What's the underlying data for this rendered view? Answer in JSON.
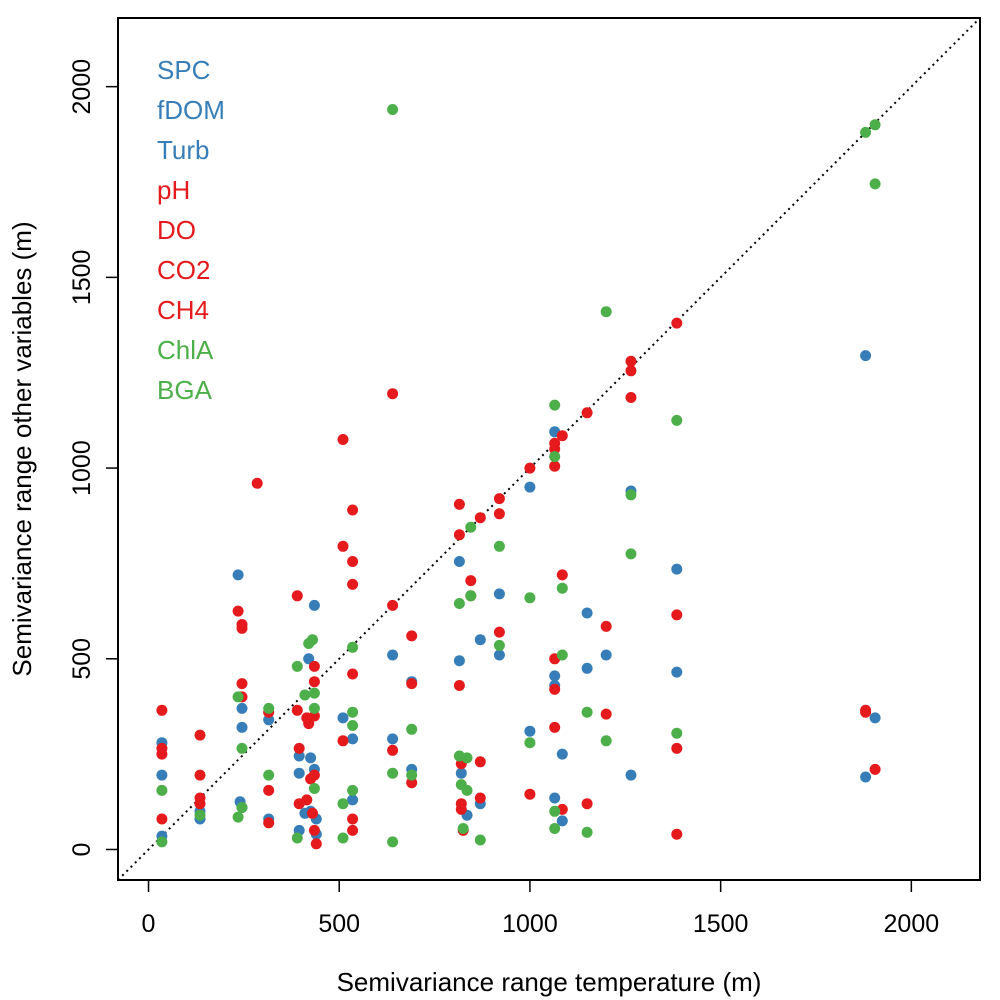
{
  "chart_data": {
    "type": "scatter",
    "xlabel": "Semivariance range temperature (m)",
    "ylabel": "Semivariance range other variables (m)",
    "xlim": [
      -80,
      2180
    ],
    "ylim": [
      -80,
      2180
    ],
    "xticks": [
      0,
      500,
      1000,
      1500,
      2000
    ],
    "yticks": [
      0,
      500,
      1000,
      1500,
      2000
    ],
    "xtick_labels": [
      "0",
      "500",
      "1000",
      "1500",
      "2000"
    ],
    "ytick_labels": [
      "0",
      "500",
      "1000",
      "1500",
      "2000"
    ],
    "reference_line": "y = x (dotted)",
    "grid": false,
    "legend_position": "top-left",
    "groups": [
      {
        "label": "SPC",
        "color": "#377EB8"
      },
      {
        "label": "fDOM",
        "color": "#377EB8"
      },
      {
        "label": "Turb",
        "color": "#377EB8"
      },
      {
        "label": "pH",
        "color": "#E41A1C"
      },
      {
        "label": "DO",
        "color": "#E41A1C"
      },
      {
        "label": "CO2",
        "color": "#E41A1C"
      },
      {
        "label": "CH4",
        "color": "#E41A1C"
      },
      {
        "label": "ChlA",
        "color": "#4DAF4A"
      },
      {
        "label": "BGA",
        "color": "#4DAF4A"
      }
    ],
    "series": [
      {
        "color": "#377EB8",
        "points": [
          [
            35,
            280
          ],
          [
            35,
            195
          ],
          [
            35,
            35
          ],
          [
            135,
            80
          ],
          [
            135,
            100
          ],
          [
            235,
            720
          ],
          [
            240,
            125
          ],
          [
            245,
            370
          ],
          [
            245,
            320
          ],
          [
            245,
            110
          ],
          [
            315,
            340
          ],
          [
            315,
            80
          ],
          [
            395,
            245
          ],
          [
            395,
            200
          ],
          [
            395,
            50
          ],
          [
            410,
            95
          ],
          [
            420,
            500
          ],
          [
            425,
            240
          ],
          [
            425,
            100
          ],
          [
            435,
            640
          ],
          [
            435,
            210
          ],
          [
            440,
            80
          ],
          [
            440,
            40
          ],
          [
            510,
            345
          ],
          [
            535,
            290
          ],
          [
            535,
            130
          ],
          [
            640,
            510
          ],
          [
            640,
            290
          ],
          [
            690,
            440
          ],
          [
            690,
            210
          ],
          [
            815,
            755
          ],
          [
            815,
            495
          ],
          [
            820,
            240
          ],
          [
            820,
            200
          ],
          [
            835,
            90
          ],
          [
            870,
            550
          ],
          [
            870,
            120
          ],
          [
            920,
            670
          ],
          [
            920,
            510
          ],
          [
            1000,
            950
          ],
          [
            1000,
            310
          ],
          [
            1065,
            1095
          ],
          [
            1065,
            455
          ],
          [
            1065,
            430
          ],
          [
            1065,
            135
          ],
          [
            1085,
            250
          ],
          [
            1085,
            75
          ],
          [
            1150,
            620
          ],
          [
            1150,
            475
          ],
          [
            1200,
            510
          ],
          [
            1265,
            940
          ],
          [
            1265,
            195
          ],
          [
            1385,
            735
          ],
          [
            1385,
            465
          ],
          [
            1880,
            1295
          ],
          [
            1880,
            190
          ],
          [
            1905,
            345
          ]
        ]
      },
      {
        "color": "#E41A1C",
        "points": [
          [
            35,
            365
          ],
          [
            35,
            265
          ],
          [
            35,
            250
          ],
          [
            35,
            80
          ],
          [
            135,
            300
          ],
          [
            135,
            195
          ],
          [
            135,
            135
          ],
          [
            135,
            120
          ],
          [
            235,
            625
          ],
          [
            245,
            590
          ],
          [
            245,
            580
          ],
          [
            245,
            435
          ],
          [
            245,
            400
          ],
          [
            285,
            960
          ],
          [
            315,
            360
          ],
          [
            315,
            155
          ],
          [
            315,
            70
          ],
          [
            390,
            665
          ],
          [
            390,
            365
          ],
          [
            395,
            265
          ],
          [
            395,
            120
          ],
          [
            415,
            345
          ],
          [
            415,
            130
          ],
          [
            420,
            330
          ],
          [
            425,
            185
          ],
          [
            430,
            95
          ],
          [
            435,
            480
          ],
          [
            435,
            440
          ],
          [
            435,
            350
          ],
          [
            435,
            195
          ],
          [
            435,
            50
          ],
          [
            440,
            15
          ],
          [
            510,
            1075
          ],
          [
            510,
            795
          ],
          [
            510,
            285
          ],
          [
            535,
            890
          ],
          [
            535,
            755
          ],
          [
            535,
            695
          ],
          [
            535,
            460
          ],
          [
            535,
            80
          ],
          [
            535,
            50
          ],
          [
            640,
            640
          ],
          [
            640,
            1195
          ],
          [
            640,
            260
          ],
          [
            690,
            560
          ],
          [
            690,
            435
          ],
          [
            690,
            175
          ],
          [
            815,
            905
          ],
          [
            815,
            825
          ],
          [
            815,
            430
          ],
          [
            820,
            225
          ],
          [
            820,
            120
          ],
          [
            820,
            105
          ],
          [
            825,
            50
          ],
          [
            845,
            705
          ],
          [
            845,
            665
          ],
          [
            870,
            870
          ],
          [
            870,
            230
          ],
          [
            870,
            135
          ],
          [
            920,
            920
          ],
          [
            920,
            880
          ],
          [
            920,
            570
          ],
          [
            1000,
            1000
          ],
          [
            1000,
            145
          ],
          [
            1065,
            1065
          ],
          [
            1065,
            1050
          ],
          [
            1065,
            1005
          ],
          [
            1065,
            500
          ],
          [
            1065,
            420
          ],
          [
            1065,
            320
          ],
          [
            1085,
            1085
          ],
          [
            1085,
            720
          ],
          [
            1085,
            105
          ],
          [
            1150,
            1145
          ],
          [
            1150,
            120
          ],
          [
            1200,
            585
          ],
          [
            1200,
            355
          ],
          [
            1265,
            1280
          ],
          [
            1265,
            1255
          ],
          [
            1265,
            1185
          ],
          [
            1385,
            1380
          ],
          [
            1385,
            615
          ],
          [
            1385,
            265
          ],
          [
            1385,
            40
          ],
          [
            1880,
            365
          ],
          [
            1880,
            360
          ],
          [
            1905,
            210
          ]
        ]
      },
      {
        "color": "#4DAF4A",
        "points": [
          [
            35,
            155
          ],
          [
            35,
            20
          ],
          [
            135,
            90
          ],
          [
            235,
            400
          ],
          [
            235,
            85
          ],
          [
            245,
            265
          ],
          [
            245,
            110
          ],
          [
            315,
            370
          ],
          [
            315,
            195
          ],
          [
            390,
            480
          ],
          [
            390,
            30
          ],
          [
            410,
            405
          ],
          [
            420,
            540
          ],
          [
            430,
            550
          ],
          [
            435,
            410
          ],
          [
            435,
            370
          ],
          [
            435,
            160
          ],
          [
            510,
            120
          ],
          [
            510,
            30
          ],
          [
            535,
            530
          ],
          [
            535,
            360
          ],
          [
            535,
            325
          ],
          [
            535,
            155
          ],
          [
            640,
            1940
          ],
          [
            640,
            200
          ],
          [
            640,
            20
          ],
          [
            690,
            315
          ],
          [
            690,
            195
          ],
          [
            815,
            645
          ],
          [
            815,
            245
          ],
          [
            820,
            170
          ],
          [
            825,
            55
          ],
          [
            835,
            240
          ],
          [
            835,
            155
          ],
          [
            845,
            845
          ],
          [
            845,
            665
          ],
          [
            870,
            25
          ],
          [
            920,
            795
          ],
          [
            920,
            535
          ],
          [
            1000,
            660
          ],
          [
            1000,
            280
          ],
          [
            1065,
            1165
          ],
          [
            1065,
            1030
          ],
          [
            1065,
            100
          ],
          [
            1065,
            55
          ],
          [
            1085,
            685
          ],
          [
            1085,
            510
          ],
          [
            1150,
            360
          ],
          [
            1150,
            45
          ],
          [
            1200,
            1410
          ],
          [
            1200,
            285
          ],
          [
            1265,
            930
          ],
          [
            1265,
            775
          ],
          [
            1385,
            1125
          ],
          [
            1385,
            305
          ],
          [
            1880,
            1880
          ],
          [
            1905,
            1900
          ],
          [
            1905,
            1745
          ]
        ]
      }
    ]
  }
}
